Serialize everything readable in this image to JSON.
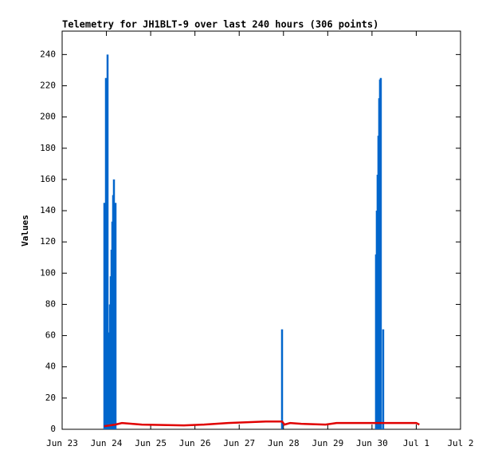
{
  "chart_data": {
    "type": "telemetry",
    "title": "Telemetry for JH1BLT-9 over last 240 hours (306 points)",
    "y_label": "Values",
    "xlim": [
      0,
      9
    ],
    "xticks": [
      {
        "value": 0,
        "label": "Jun 23"
      },
      {
        "value": 1,
        "label": "Jun 24"
      },
      {
        "value": 2,
        "label": "Jun 25"
      },
      {
        "value": 3,
        "label": "Jun 26"
      },
      {
        "value": 4,
        "label": "Jun 27"
      },
      {
        "value": 5,
        "label": "Jun 28"
      },
      {
        "value": 6,
        "label": "Jun 29"
      },
      {
        "value": 7,
        "label": "Jun 30"
      },
      {
        "value": 8,
        "label": "Jul 1"
      },
      {
        "value": 9,
        "label": "Jul 2"
      }
    ],
    "ylim": [
      0,
      255
    ],
    "yticks": [
      0,
      20,
      40,
      60,
      80,
      100,
      120,
      140,
      160,
      180,
      200,
      220,
      240
    ],
    "series": [
      {
        "color": "#0066cc",
        "style": "impulses",
        "x": [
          0.954,
          0.99,
          1.026,
          1.044,
          1.062,
          1.08,
          1.098,
          1.116,
          1.134,
          1.152,
          1.17,
          1.206,
          4.968,
          7.091,
          7.109,
          7.127,
          7.145,
          7.163,
          7.181,
          7.199,
          7.253
        ],
        "values": [
          145,
          225,
          240,
          45,
          62,
          80,
          98,
          115,
          133,
          150,
          160,
          145,
          64,
          112,
          140,
          163,
          188,
          212,
          224,
          225,
          64
        ]
      },
      {
        "color": "#e00000",
        "style": "line",
        "x": [
          0.95,
          1.2,
          1.35,
          1.8,
          2.75,
          3.2,
          3.75,
          4.6,
          4.97,
          5.02,
          5.15,
          5.4,
          5.95,
          6.2,
          8.0,
          8.07
        ],
        "values": [
          2,
          3,
          4,
          3,
          2.5,
          3,
          4,
          5,
          5,
          3,
          4,
          3.5,
          3,
          4,
          4,
          3
        ]
      }
    ]
  }
}
